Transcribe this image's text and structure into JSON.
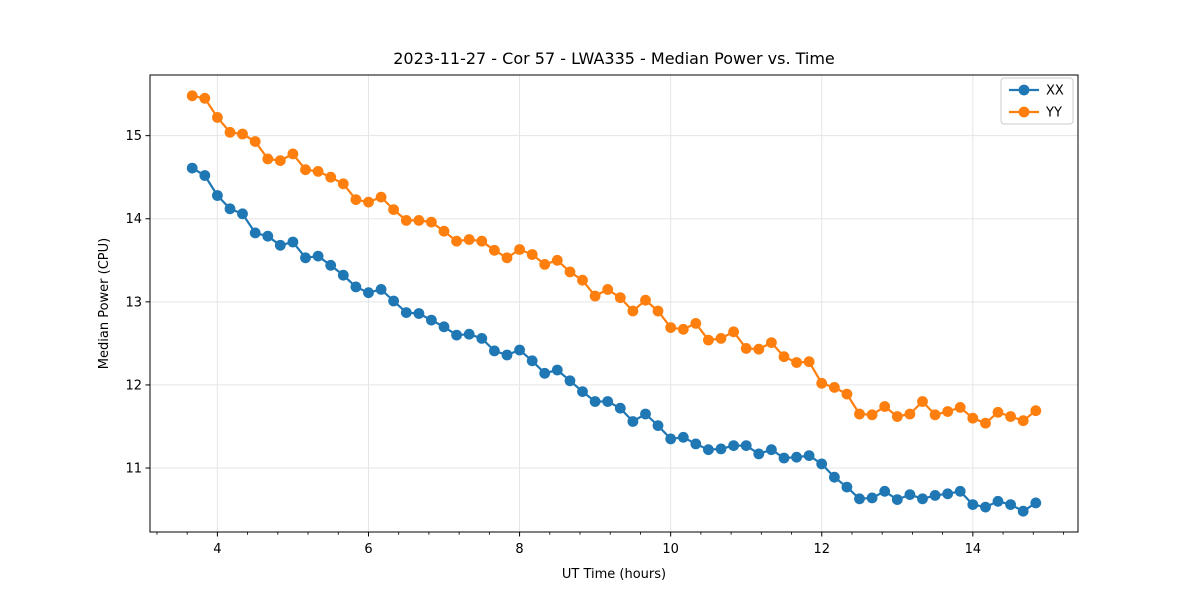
{
  "title": "2023-11-27 - Cor 57 - LWA335 - Median Power vs. Time",
  "axes": {
    "xlabel": "UT Time (hours)",
    "ylabel": "Median Power (CPU)"
  },
  "legend": {
    "position": "upper right",
    "entries": [
      {
        "label": "XX",
        "color": "#1f77b4"
      },
      {
        "label": "YY",
        "color": "#ff7f0e"
      }
    ]
  },
  "colors": {
    "series_xx": "#1f77b4",
    "series_yy": "#ff7f0e",
    "grid": "#e5e5e5",
    "spine": "#000000",
    "background": "#ffffff",
    "legend_border": "#cccccc"
  },
  "chart_data": {
    "type": "line",
    "title": "2023-11-27 - Cor 57 - LWA335 - Median Power vs. Time",
    "xlabel": "UT Time (hours)",
    "ylabel": "Median Power (CPU)",
    "xlim": [
      3.108,
      15.392
    ],
    "ylim": [
      10.23,
      15.73
    ],
    "xticks": [
      4,
      6,
      8,
      10,
      12,
      14
    ],
    "yticks": [
      11,
      12,
      13,
      14,
      15
    ],
    "minor_xtick_step": 0.4,
    "grid": true,
    "marker": "o",
    "legend_position": "upper right",
    "x": [
      3.667,
      3.833,
      4.0,
      4.167,
      4.333,
      4.5,
      4.667,
      4.833,
      5.0,
      5.167,
      5.333,
      5.5,
      5.667,
      5.833,
      6.0,
      6.167,
      6.333,
      6.5,
      6.667,
      6.833,
      7.0,
      7.167,
      7.333,
      7.5,
      7.667,
      7.833,
      8.0,
      8.167,
      8.333,
      8.5,
      8.667,
      8.833,
      9.0,
      9.167,
      9.333,
      9.5,
      9.667,
      9.833,
      10.0,
      10.167,
      10.333,
      10.5,
      10.667,
      10.833,
      11.0,
      11.167,
      11.333,
      11.5,
      11.667,
      11.833,
      12.0,
      12.167,
      12.333,
      12.5,
      12.667,
      12.833,
      13.0,
      13.167,
      13.333,
      13.5,
      13.667,
      13.833,
      14.0,
      14.167,
      14.333,
      14.5,
      14.667,
      14.833
    ],
    "series": [
      {
        "name": "XX",
        "color": "#1f77b4",
        "values": [
          14.61,
          14.52,
          14.28,
          14.12,
          14.06,
          13.83,
          13.79,
          13.68,
          13.72,
          13.53,
          13.55,
          13.44,
          13.32,
          13.18,
          13.11,
          13.15,
          13.01,
          12.87,
          12.86,
          12.78,
          12.7,
          12.6,
          12.61,
          12.56,
          12.41,
          12.36,
          12.42,
          12.29,
          12.14,
          12.18,
          12.05,
          11.92,
          11.8,
          11.8,
          11.72,
          11.56,
          11.65,
          11.51,
          11.35,
          11.37,
          11.29,
          11.22,
          11.23,
          11.27,
          11.27,
          11.17,
          11.22,
          11.12,
          11.13,
          11.15,
          11.05,
          10.89,
          10.77,
          10.63,
          10.64,
          10.72,
          10.62,
          10.68,
          10.63,
          10.67,
          10.69,
          10.72,
          10.56,
          10.53,
          10.6,
          10.56,
          10.48,
          10.58
        ]
      },
      {
        "name": "YY",
        "color": "#ff7f0e",
        "values": [
          15.48,
          15.45,
          15.22,
          15.04,
          15.02,
          14.93,
          14.72,
          14.7,
          14.78,
          14.59,
          14.57,
          14.5,
          14.42,
          14.23,
          14.2,
          14.26,
          14.11,
          13.98,
          13.98,
          13.96,
          13.85,
          13.73,
          13.75,
          13.73,
          13.62,
          13.53,
          13.63,
          13.57,
          13.45,
          13.5,
          13.36,
          13.26,
          13.07,
          13.15,
          13.05,
          12.89,
          13.02,
          12.89,
          12.69,
          12.67,
          12.74,
          12.54,
          12.56,
          12.64,
          12.44,
          12.43,
          12.51,
          12.34,
          12.27,
          12.28,
          12.02,
          11.97,
          11.89,
          11.65,
          11.64,
          11.74,
          11.62,
          11.65,
          11.8,
          11.64,
          11.68,
          11.73,
          11.6,
          11.54,
          11.67,
          11.62,
          11.57,
          11.69
        ]
      }
    ]
  }
}
